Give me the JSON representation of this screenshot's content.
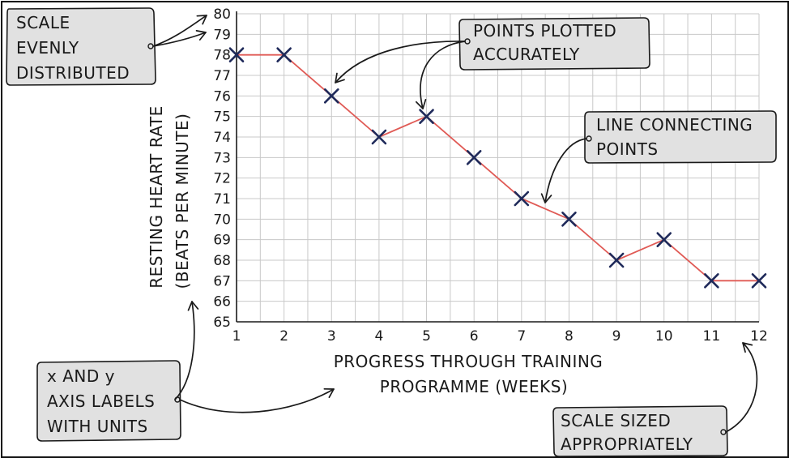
{
  "chart_data": {
    "type": "line",
    "x": [
      1,
      2,
      3,
      4,
      5,
      6,
      7,
      8,
      9,
      10,
      11,
      12
    ],
    "series": [
      {
        "values": [
          78,
          78,
          76,
          74,
          75,
          73,
          71,
          70,
          68,
          69,
          67,
          67
        ]
      }
    ],
    "xlabel_lines": [
      "PROGRESS THROUGH TRAINING",
      "PROGRAMME (WEEKS)"
    ],
    "ylabel_lines": [
      "RESTING HEART RATE",
      "(BEATS PER MINUTE)"
    ],
    "xlim": [
      1,
      12
    ],
    "ylim": [
      65,
      80
    ],
    "x_ticks": [
      1,
      2,
      3,
      4,
      5,
      6,
      7,
      8,
      9,
      10,
      11,
      12
    ],
    "y_ticks": [
      65,
      66,
      67,
      68,
      69,
      70,
      71,
      72,
      73,
      74,
      75,
      76,
      77,
      78,
      79,
      80
    ],
    "grid": true,
    "line_color": "#e05a55",
    "marker": "cross",
    "marker_color": "#1f2a5a"
  },
  "annotations": [
    {
      "id": "scale",
      "lines": [
        "SCALE",
        "EVENLY",
        "DISTRIBUTED"
      ]
    },
    {
      "id": "points",
      "lines": [
        "POINTS PLOTTED",
        "ACCURATELY"
      ]
    },
    {
      "id": "line",
      "lines": [
        "LINE CONNECTING",
        "POINTS"
      ]
    },
    {
      "id": "labels",
      "lines": [
        "x AND y",
        "AXIS LABELS",
        "WITH UNITS"
      ]
    },
    {
      "id": "sized",
      "lines": [
        "SCALE SIZED",
        "APPROPRIATELY"
      ]
    }
  ],
  "colors": {
    "note_fill": "#e1e1e1",
    "grid": "#c8c8c8"
  }
}
